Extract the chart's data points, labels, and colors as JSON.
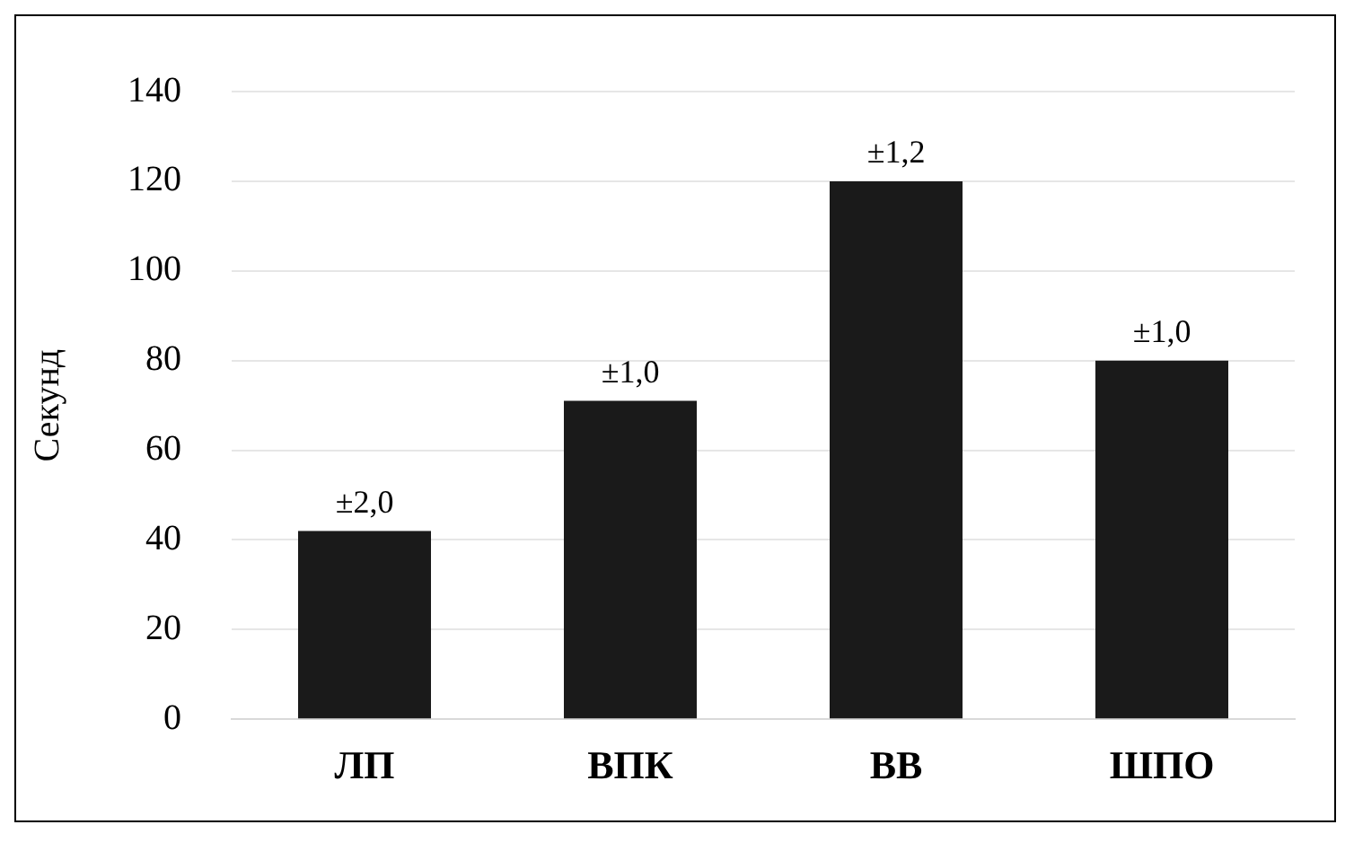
{
  "chart_data": {
    "type": "bar",
    "ylabel": "Секунд",
    "categories": [
      "ЛП",
      "ВПК",
      "ВВ",
      "ШПО"
    ],
    "values": [
      42,
      71,
      120,
      80
    ],
    "color": "#1a1a1a",
    "ylim": [
      0,
      140
    ],
    "yticks": [
      0,
      20,
      40,
      60,
      80,
      100,
      120,
      140
    ],
    "grid": "y",
    "legend": false,
    "annotations": [
      {
        "text": "±2,0",
        "x": "ЛП",
        "y": 42
      },
      {
        "text": "±1,0",
        "x": "ВПК",
        "y": 71
      },
      {
        "text": "±1,2",
        "x": "ВВ",
        "y": 120
      },
      {
        "text": "±1,0",
        "x": "ШПО",
        "y": 80
      }
    ]
  }
}
